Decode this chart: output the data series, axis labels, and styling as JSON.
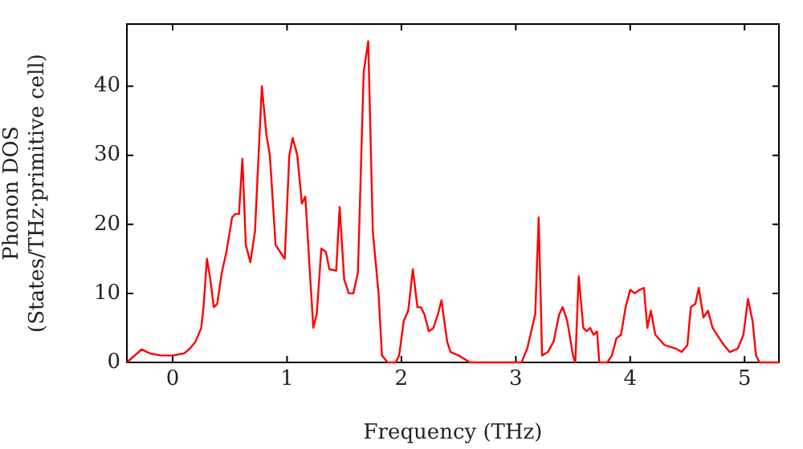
{
  "chart_data": {
    "type": "line",
    "xlabel": "Frequency (THz)",
    "ylabel": "Phonon DOS\n(States/THz·primitive cell)",
    "x": [
      -0.4,
      -0.27,
      -0.2,
      -0.1,
      0,
      0.1,
      0.15,
      0.2,
      0.25,
      0.27,
      0.3,
      0.33,
      0.36,
      0.39,
      0.43,
      0.47,
      0.52,
      0.55,
      0.58,
      0.61,
      0.64,
      0.68,
      0.72,
      0.78,
      0.82,
      0.85,
      0.9,
      0.96,
      0.98,
      1.02,
      1.05,
      1.09,
      1.13,
      1.16,
      1.2,
      1.23,
      1.26,
      1.3,
      1.34,
      1.37,
      1.43,
      1.46,
      1.5,
      1.54,
      1.58,
      1.62,
      1.67,
      1.71,
      1.75,
      1.8,
      1.83,
      1.88,
      1.95,
      1.98,
      2.02,
      2.06,
      2.1,
      2.14,
      2.17,
      2.2,
      2.24,
      2.28,
      2.32,
      2.35,
      2.4,
      2.43,
      2.5,
      2.6,
      3.05,
      3.1,
      3.17,
      3.2,
      3.23,
      3.28,
      3.33,
      3.38,
      3.41,
      3.45,
      3.5,
      3.52,
      3.55,
      3.59,
      3.62,
      3.65,
      3.68,
      3.71,
      3.73,
      3.8,
      3.84,
      3.88,
      3.92,
      3.96,
      4.0,
      4.04,
      4.08,
      4.12,
      4.15,
      4.18,
      4.22,
      4.3,
      4.4,
      4.45,
      4.5,
      4.53,
      4.57,
      4.6,
      4.64,
      4.68,
      4.72,
      4.78,
      4.82,
      4.87,
      4.94,
      4.99,
      5.03,
      5.07,
      5.1,
      5.13,
      5.3
    ],
    "series": [
      {
        "color": "#ff0000",
        "values": [
          0,
          1.9,
          1.3,
          1,
          1,
          1.3,
          2,
          3,
          5,
          8,
          15,
          12,
          8,
          8.5,
          13,
          16,
          21,
          21.5,
          21.5,
          29.5,
          17,
          14.5,
          19,
          40,
          33,
          30,
          17,
          15.5,
          15,
          30,
          32.5,
          30,
          23,
          24,
          13,
          5,
          7,
          16.5,
          16,
          13.5,
          13.3,
          22.5,
          12,
          10,
          10,
          13,
          42,
          46.5,
          19,
          10,
          1,
          0,
          0,
          1,
          6,
          7.5,
          13.5,
          8,
          8,
          7,
          4.5,
          5,
          7,
          9,
          3,
          1.5,
          1,
          0,
          0,
          2,
          7,
          21,
          1,
          1.5,
          3,
          7,
          8,
          6,
          1,
          0,
          12.5,
          5,
          4.5,
          5,
          4,
          4.5,
          0,
          0,
          1,
          3.5,
          4,
          8,
          10.5,
          10,
          10.5,
          10.8,
          5,
          7.5,
          4,
          2.5,
          2,
          1.5,
          2.5,
          8,
          8.5,
          10.8,
          6.5,
          7.5,
          5,
          3.5,
          2.5,
          1.5,
          2,
          4,
          9.2,
          6,
          1,
          0,
          0
        ]
      }
    ],
    "xlim": [
      -0.4,
      5.3
    ],
    "ylim": [
      0,
      49
    ],
    "xticks": [
      0,
      1,
      2,
      3,
      4,
      5
    ],
    "yticks": [
      0,
      10,
      20,
      30,
      40
    ],
    "grid": false,
    "legend": false,
    "marker": "none",
    "line_style": "solid"
  }
}
